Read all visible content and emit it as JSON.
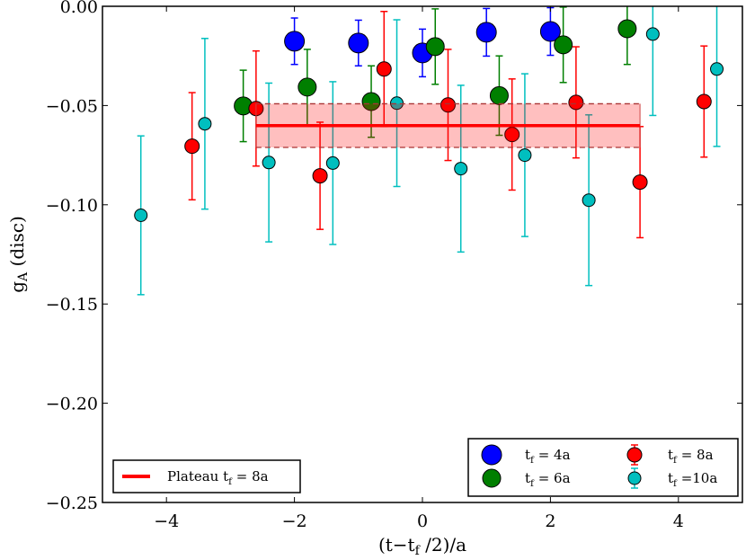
{
  "chart_data": {
    "type": "scatter",
    "title": "",
    "xlabel": {
      "pre": "(t−t",
      "sub": "f",
      "post": " /2)/a"
    },
    "ylabel": {
      "pre": "g",
      "sub": "A",
      "post": " (disc)"
    },
    "xlim": [
      -5,
      5
    ],
    "ylim": [
      -0.25,
      0.0
    ],
    "xticks": [
      -4,
      -2,
      0,
      2,
      4
    ],
    "xtick_labels": [
      "−4",
      "−2",
      "0",
      "2",
      "4"
    ],
    "yticks": [
      0.0,
      -0.05,
      -0.1,
      -0.15,
      -0.2,
      -0.25
    ],
    "ytick_labels": [
      "0.00",
      "−0.05",
      "−0.10",
      "−0.15",
      "−0.20",
      "−0.25"
    ],
    "grid": false,
    "series": [
      {
        "name": {
          "main": "t",
          "sub": "f",
          "rest": " =  4a"
        },
        "color": "#0000ff",
        "x": [
          -2,
          -1,
          0,
          1,
          2
        ],
        "y": [
          -0.0176,
          -0.0185,
          -0.0235,
          -0.0131,
          -0.0127
        ],
        "yerr": [
          0.0117,
          0.0115,
          0.012,
          0.012,
          0.012
        ]
      },
      {
        "name": {
          "main": "t",
          "sub": "f",
          "rest": " =  6a"
        },
        "color": "#007f00",
        "x": [
          -2.8,
          -1.8,
          -0.8,
          0.2,
          1.2,
          2.2,
          3.2
        ],
        "y": [
          -0.0502,
          -0.0407,
          -0.048,
          -0.0203,
          -0.045,
          -0.0194,
          -0.0113
        ],
        "yerr": [
          0.018,
          0.019,
          0.018,
          0.019,
          0.02,
          0.019,
          0.018
        ]
      },
      {
        "name": {
          "main": "t",
          "sub": "f",
          "rest": " =  8a"
        },
        "color": "#ff0000",
        "x": [
          -3.6,
          -2.6,
          -1.6,
          -0.6,
          0.4,
          1.4,
          2.4,
          3.4,
          4.4
        ],
        "y": [
          -0.0705,
          -0.0515,
          -0.0854,
          -0.0316,
          -0.0497,
          -0.0646,
          -0.0484,
          -0.0886,
          -0.048
        ],
        "yerr": [
          0.027,
          0.029,
          0.027,
          0.029,
          0.028,
          0.028,
          0.028,
          0.028,
          0.028
        ]
      },
      {
        "name": {
          "main": "t",
          "sub": "f",
          "rest": " =10a"
        },
        "color": "#00bfbf",
        "x": [
          -4.4,
          -3.4,
          -2.4,
          -1.4,
          -0.4,
          0.6,
          1.6,
          2.6,
          3.6,
          4.6
        ],
        "y": [
          -0.1053,
          -0.0592,
          -0.0787,
          -0.079,
          -0.0488,
          -0.0818,
          -0.075,
          -0.0977,
          -0.014,
          -0.0316
        ],
        "yerr": [
          0.04,
          0.043,
          0.04,
          0.041,
          0.042,
          0.042,
          0.041,
          0.043,
          0.041,
          0.039
        ]
      }
    ],
    "plateau": {
      "name": {
        "main": "Plateau  t",
        "sub": "f",
        "rest": " = 8a"
      },
      "color": "#ff0000",
      "x_range": [
        -2.6,
        3.4
      ],
      "value": -0.0601,
      "error": 0.011
    },
    "legend_placement": [
      "lower-right",
      "lower-left"
    ]
  }
}
